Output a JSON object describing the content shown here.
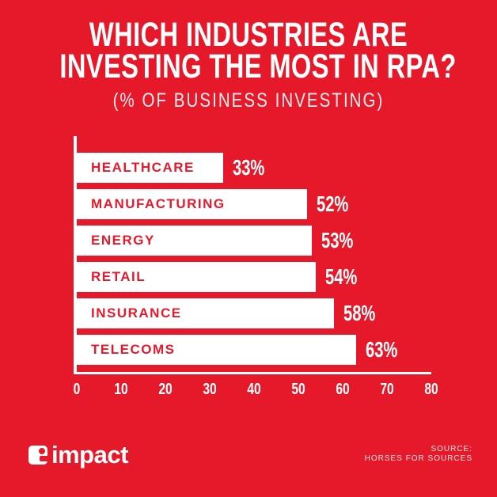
{
  "title": {
    "line1": "WHICH INDUSTRIES ARE",
    "line2": "INVESTING THE MOST IN RPA?",
    "subtitle": "(% OF BUSINESS INVESTING)"
  },
  "chart_data": {
    "type": "bar",
    "orientation": "horizontal",
    "title": "WHICH INDUSTRIES ARE INVESTING THE MOST IN RPA?",
    "subtitle": "(% OF BUSINESS INVESTING)",
    "categories": [
      "HEALTHCARE",
      "MANUFACTURING",
      "ENERGY",
      "RETAIL",
      "INSURANCE",
      "TELECOMS"
    ],
    "values": [
      33,
      52,
      53,
      54,
      58,
      63
    ],
    "value_labels": [
      "33%",
      "52%",
      "53%",
      "54%",
      "58%",
      "63%"
    ],
    "xlabel": "",
    "ylabel": "",
    "xlim": [
      0,
      80
    ],
    "x_ticks": [
      0,
      10,
      20,
      30,
      40,
      50,
      60,
      70,
      80
    ],
    "grid": false,
    "legend": false,
    "bar_color": "#FFFFFF",
    "bar_label_color": "#E6192B",
    "background_color": "#E6192B",
    "axis_color": "#FFFFFF"
  },
  "footer": {
    "logo_text": "impact",
    "source_line1": "SOURCE:",
    "source_line2": "HORSES FOR SOURCES"
  },
  "colors": {
    "background": "#E6192B",
    "bar_fill": "#FFFFFF",
    "text": "#FFFFFF"
  }
}
